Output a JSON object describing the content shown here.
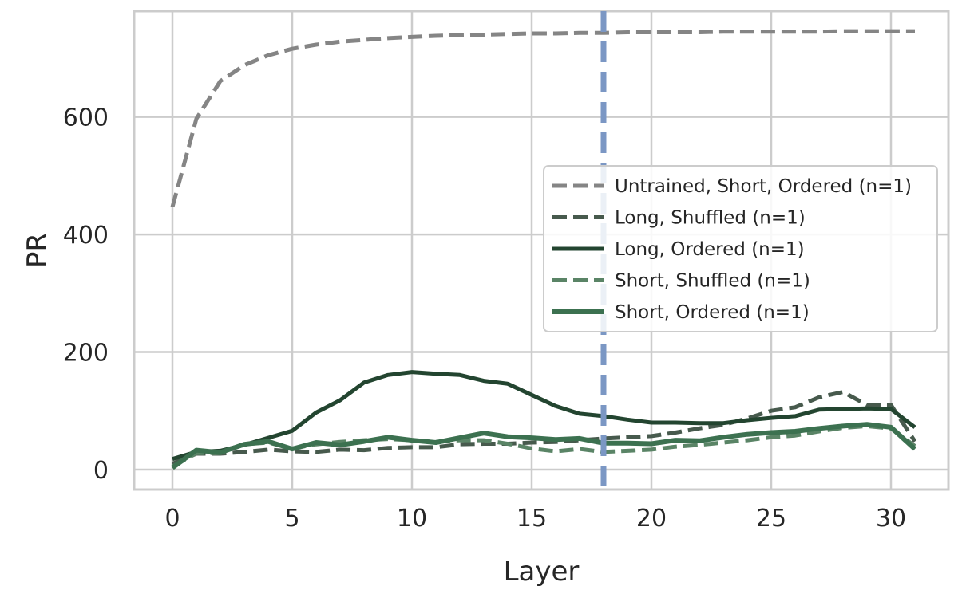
{
  "chart_data": {
    "type": "line",
    "title": "",
    "xlabel": "Layer",
    "ylabel": "PR",
    "xlim": [
      -1.6,
      32.4
    ],
    "ylim": [
      -34,
      780
    ],
    "xticks": [
      0,
      5,
      10,
      15,
      20,
      25,
      30
    ],
    "yticks": [
      0,
      200,
      400,
      600
    ],
    "grid": true,
    "legend_position": "center-right",
    "vline": {
      "x": 18,
      "color": "#7b97c4",
      "style": "dashed"
    },
    "series": [
      {
        "name": "Untrained, Short, Ordered (n=1)",
        "color": "#858585",
        "style": "dashed",
        "width": 5,
        "x": [
          0,
          1,
          2,
          3,
          4,
          5,
          6,
          7,
          8,
          9,
          10,
          11,
          12,
          13,
          14,
          15,
          16,
          17,
          18,
          19,
          20,
          21,
          22,
          23,
          24,
          25,
          26,
          27,
          28,
          29,
          30,
          31
        ],
        "y": [
          447,
          597,
          661,
          688,
          705,
          716,
          723,
          728,
          731,
          734,
          736,
          738,
          739,
          740,
          741,
          742,
          742,
          743,
          743,
          744,
          744,
          744,
          744,
          745,
          745,
          745,
          745,
          745,
          746,
          746,
          746,
          746
        ]
      },
      {
        "name": "Long, Shuffled (n=1)",
        "color": "#475a4d",
        "style": "dashed",
        "width": 5,
        "x": [
          0,
          1,
          2,
          3,
          4,
          5,
          6,
          7,
          8,
          9,
          10,
          11,
          12,
          13,
          14,
          15,
          16,
          17,
          18,
          19,
          20,
          21,
          22,
          23,
          24,
          25,
          26,
          27,
          28,
          29,
          30,
          31
        ],
        "y": [
          10,
          27,
          27,
          30,
          34,
          31,
          30,
          34,
          33,
          37,
          38,
          38,
          43,
          44,
          44,
          46,
          47,
          50,
          53,
          55,
          57,
          63,
          70,
          76,
          87,
          100,
          106,
          123,
          132,
          110,
          110,
          48
        ]
      },
      {
        "name": "Long, Ordered (n=1)",
        "color": "#234530",
        "style": "solid",
        "width": 5,
        "x": [
          0,
          1,
          2,
          3,
          4,
          5,
          6,
          7,
          8,
          9,
          10,
          11,
          12,
          13,
          14,
          15,
          16,
          17,
          18,
          19,
          20,
          21,
          22,
          23,
          24,
          25,
          26,
          27,
          28,
          29,
          30,
          31
        ],
        "y": [
          18,
          30,
          32,
          42,
          54,
          66,
          97,
          118,
          148,
          161,
          166,
          163,
          161,
          151,
          146,
          127,
          108,
          95,
          91,
          85,
          80,
          80,
          79,
          79,
          84,
          88,
          91,
          102,
          103,
          104,
          103,
          72
        ]
      },
      {
        "name": "Short, Shuffled (n=1)",
        "color": "#5a8466",
        "style": "dashed",
        "width": 5,
        "x": [
          0,
          1,
          2,
          3,
          4,
          5,
          6,
          7,
          8,
          9,
          10,
          11,
          12,
          13,
          14,
          15,
          16,
          17,
          18,
          19,
          20,
          21,
          22,
          23,
          24,
          25,
          26,
          27,
          28,
          29,
          30,
          31
        ],
        "y": [
          5,
          28,
          28,
          43,
          46,
          36,
          43,
          47,
          50,
          52,
          50,
          47,
          50,
          50,
          44,
          36,
          31,
          35,
          30,
          32,
          34,
          39,
          42,
          46,
          50,
          55,
          58,
          65,
          71,
          74,
          70,
          40
        ]
      },
      {
        "name": "Short, Ordered (n=1)",
        "color": "#3c7150",
        "style": "solid",
        "width": 6,
        "x": [
          0,
          1,
          2,
          3,
          4,
          5,
          6,
          7,
          8,
          9,
          10,
          11,
          12,
          13,
          14,
          15,
          16,
          17,
          18,
          19,
          20,
          21,
          22,
          23,
          24,
          25,
          26,
          27,
          28,
          29,
          30,
          31
        ],
        "y": [
          3,
          33,
          29,
          43,
          48,
          35,
          46,
          42,
          48,
          55,
          50,
          46,
          54,
          62,
          56,
          54,
          51,
          53,
          45,
          45,
          44,
          50,
          49,
          55,
          60,
          63,
          65,
          70,
          74,
          77,
          72,
          35
        ]
      }
    ]
  }
}
